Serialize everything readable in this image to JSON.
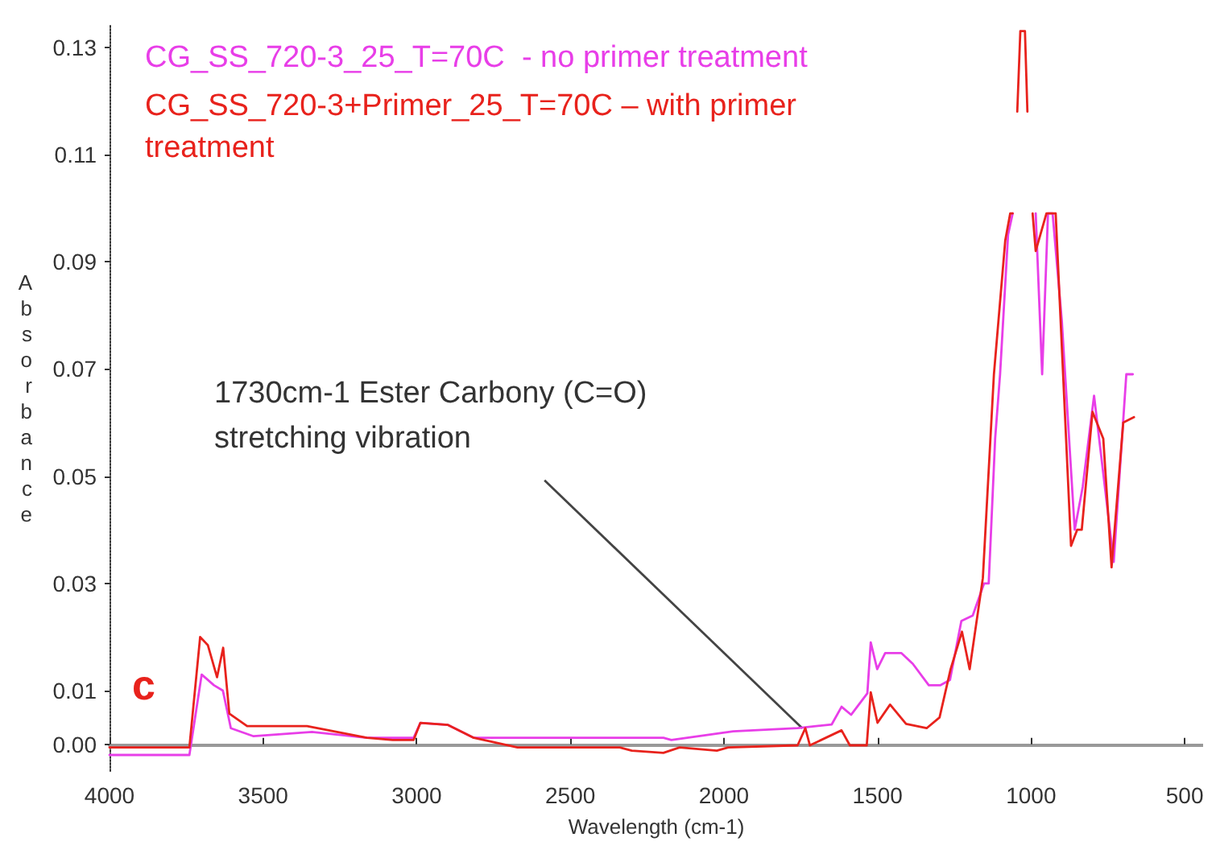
{
  "chart_data": {
    "type": "line",
    "xlabel": "Wavelength (cm-1)",
    "ylabel": "Absorbance",
    "xlim": [
      4000,
      440
    ],
    "xticks": [
      4000,
      3500,
      3000,
      2500,
      2000,
      1500,
      1000,
      500
    ],
    "ylim": [
      -0.005,
      0.134
    ],
    "yticks": [
      {
        "value": 0,
        "label": "0.00"
      },
      {
        "value": 0.01,
        "label": "0.01"
      },
      {
        "value": 0.03,
        "label": "0.03"
      },
      {
        "value": 0.05,
        "label": "0.05"
      },
      {
        "value": 0.07,
        "label": "0.07"
      },
      {
        "value": 0.09,
        "label": "0.09"
      },
      {
        "value": 0.11,
        "label": "0.11"
      },
      {
        "value": 0.13,
        "label": "0.13"
      }
    ],
    "grid": false,
    "legend": "top left",
    "marker": "none",
    "line_style": "solid",
    "annotations": [
      "c",
      {
        "text": "1730cm-1 Ester Carbony (C=O) stretching vibration",
        "x": 1745,
        "y": 0.003
      }
    ],
    "series": [
      {
        "name": "CG_SS_720-3_25_T=70C  - no primer treatment",
        "color": "#e83ee8",
        "x": [
          4000,
          3740,
          3700,
          3660,
          3631,
          3605,
          3531,
          3341,
          3162,
          3010,
          2988,
          2898,
          2814,
          2635,
          2197,
          2171,
          1970,
          1760,
          1649,
          1617,
          1586,
          1533,
          1522,
          1501,
          1475,
          1422,
          1385,
          1333,
          1296,
          1264,
          1227,
          1190,
          1153,
          1138,
          1117,
          1101,
          1075,
          1060,
          1055,
          990,
          985,
          964,
          945,
          930,
          900,
          858,
          832,
          795,
          731,
          690,
          669
        ],
        "values": [
          -0.002,
          -0.002,
          0.013,
          0.011,
          0.01,
          0.003,
          0.0015,
          0.0023,
          0.0012,
          0.0012,
          0.004,
          0.0036,
          0.0012,
          0.0012,
          0.0012,
          0.0008,
          0.0024,
          0.003,
          0.0037,
          0.007,
          0.0055,
          0.0095,
          0.019,
          0.014,
          0.017,
          0.017,
          0.015,
          0.011,
          0.011,
          0.012,
          0.023,
          0.024,
          0.03,
          0.03,
          0.057,
          0.069,
          0.095,
          0.099,
          null,
          null,
          0.099,
          0.069,
          0.099,
          0.099,
          0.079,
          0.04,
          0.048,
          0.065,
          0.034,
          0.069,
          0.069
        ]
      },
      {
        "name": "CG_SS_720-3+Primer_25_T=70C – with primer treatment",
        "color": "#e8221c",
        "x": [
          4000,
          3740,
          3705,
          3680,
          3650,
          3630,
          3610,
          3552,
          3357,
          3162,
          3078,
          3010,
          2988,
          2898,
          2814,
          2672,
          2339,
          2300,
          2197,
          2144,
          2023,
          1986,
          1760,
          1735,
          1720,
          1617,
          1590,
          1535,
          1522,
          1500,
          1459,
          1407,
          1340,
          1298,
          1262,
          1225,
          1200,
          1157,
          1121,
          1084,
          1068,
          1060,
          1055,
          1045,
          1035,
          1020,
          1012,
          1005,
          995,
          985,
          950,
          920,
          870,
          850,
          835,
          800,
          765,
          738,
          700,
          665
        ],
        "values": [
          -0.0006,
          -0.0006,
          0.02,
          0.0185,
          0.0125,
          0.018,
          0.0057,
          0.0034,
          0.0034,
          0.0012,
          0.0008,
          0.0008,
          0.004,
          0.0036,
          0.0012,
          -0.0006,
          -0.0006,
          -0.0012,
          -0.0016,
          -0.0006,
          -0.0012,
          -0.0006,
          -0.0002,
          0.003,
          -0.0002,
          0.0026,
          -0.0002,
          -0.0002,
          0.0097,
          0.004,
          0.0074,
          0.0038,
          0.003,
          0.005,
          0.014,
          0.021,
          0.014,
          0.031,
          0.069,
          0.094,
          0.099,
          0.099,
          null,
          0.118,
          0.133,
          0.133,
          0.118,
          null,
          0.099,
          0.092,
          0.099,
          0.099,
          0.037,
          0.04,
          0.04,
          0.062,
          0.057,
          0.033,
          0.06,
          0.061
        ]
      }
    ]
  }
}
